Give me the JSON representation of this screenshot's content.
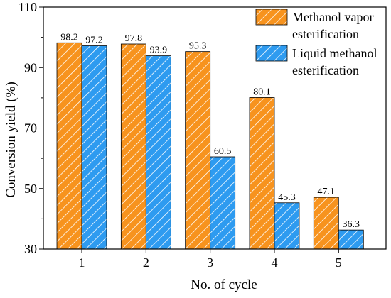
{
  "chart_data": {
    "type": "bar",
    "title": "",
    "xlabel": "No. of cycle",
    "ylabel": "Conversion yield (%)",
    "categories": [
      "1",
      "2",
      "3",
      "4",
      "5"
    ],
    "ylim": [
      30,
      110
    ],
    "yticks": [
      30,
      50,
      70,
      90,
      110
    ],
    "grid": false,
    "legend_position": "top-right",
    "series": [
      {
        "name": "Methanol vapor esterification",
        "legend_lines": [
          "Methanol vapor",
          "esterification"
        ],
        "values": [
          98.2,
          97.8,
          95.3,
          80.1,
          47.1
        ],
        "labels": [
          "98.2",
          "97.8",
          "95.3",
          "80.1",
          "47.1"
        ],
        "color": "#F7931E",
        "pattern": "hatch-orange"
      },
      {
        "name": "Liquid methanol esterification",
        "legend_lines": [
          "Liquid methanol",
          "esterification"
        ],
        "values": [
          97.2,
          93.9,
          60.5,
          45.3,
          36.3
        ],
        "labels": [
          "97.2",
          "93.9",
          "60.5",
          "45.3",
          "36.3"
        ],
        "color": "#2E9BF0",
        "pattern": "hatch-blue"
      }
    ]
  }
}
